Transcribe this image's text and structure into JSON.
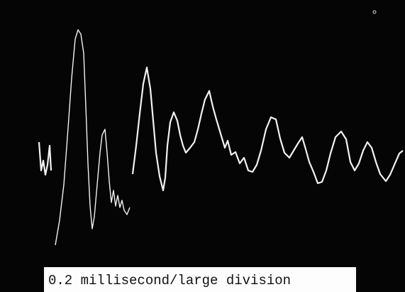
{
  "caption": "0.2 millisecond/large division"
}
